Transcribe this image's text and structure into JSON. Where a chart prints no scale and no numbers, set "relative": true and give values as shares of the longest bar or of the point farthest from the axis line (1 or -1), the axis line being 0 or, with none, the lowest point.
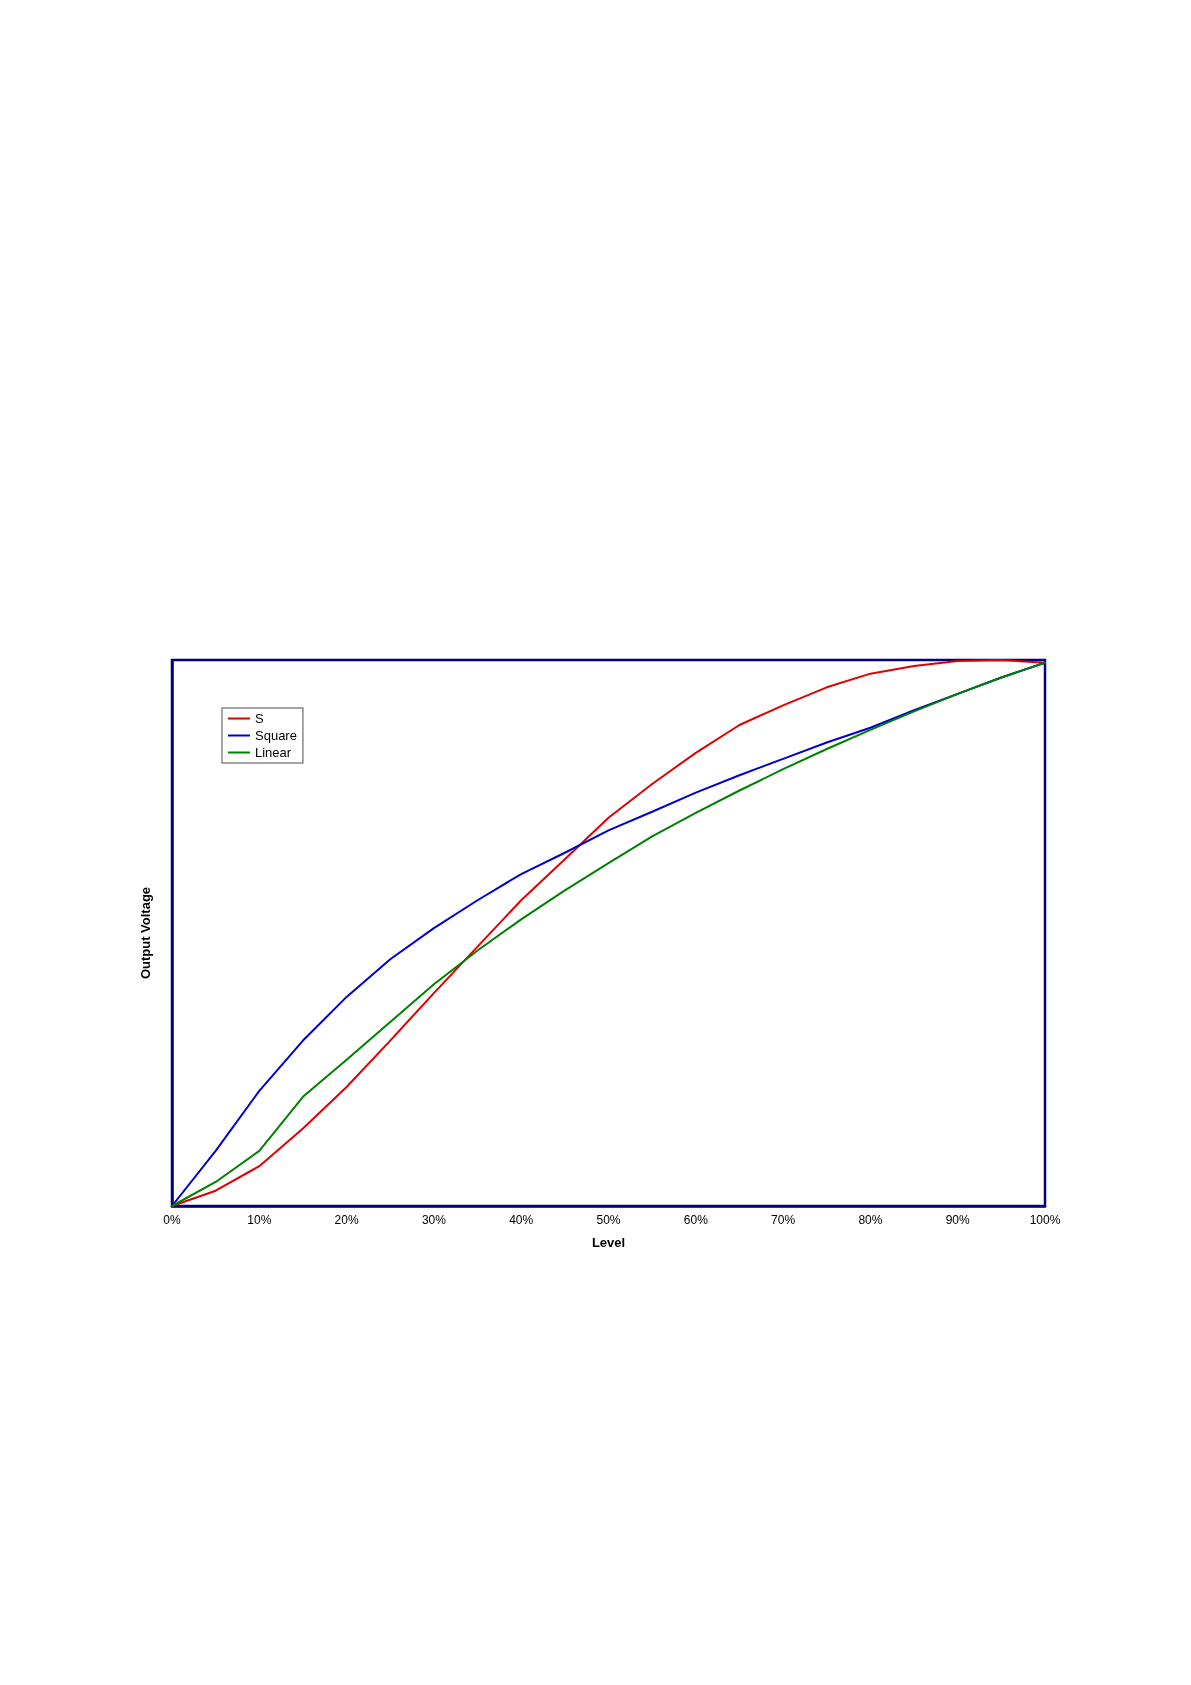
{
  "chart_data": {
    "type": "line",
    "relative": true,
    "xlabel": "Level",
    "ylabel": "Output Voltage",
    "x": [
      0,
      5,
      10,
      15,
      20,
      25,
      30,
      35,
      40,
      45,
      50,
      55,
      60,
      65,
      70,
      75,
      80,
      85,
      90,
      95,
      100
    ],
    "xlim": [
      0,
      100
    ],
    "xticks": [
      {
        "value": 0,
        "label": "0%"
      },
      {
        "value": 10,
        "label": "10%"
      },
      {
        "value": 20,
        "label": "20%"
      },
      {
        "value": 30,
        "label": "30%"
      },
      {
        "value": 40,
        "label": "40%"
      },
      {
        "value": 50,
        "label": "50%"
      },
      {
        "value": 60,
        "label": "60%"
      },
      {
        "value": 70,
        "label": "70%"
      },
      {
        "value": 80,
        "label": "80%"
      },
      {
        "value": 90,
        "label": "90%"
      },
      {
        "value": 100,
        "label": "100%"
      }
    ],
    "series": [
      {
        "name": "S",
        "color": "#e00000",
        "values": [
          0,
          0.028,
          0.073,
          0.142,
          0.218,
          0.303,
          0.39,
          0.475,
          0.56,
          0.635,
          0.711,
          0.773,
          0.83,
          0.881,
          0.917,
          0.95,
          0.975,
          0.989,
          0.998,
          1,
          0.995
        ]
      },
      {
        "name": "Square",
        "color": "#0000cc",
        "values": [
          0,
          0.101,
          0.211,
          0.303,
          0.383,
          0.452,
          0.509,
          0.56,
          0.608,
          0.647,
          0.688,
          0.722,
          0.757,
          0.789,
          0.819,
          0.849,
          0.876,
          0.908,
          0.938,
          0.968,
          0.995
        ]
      },
      {
        "name": "Linear",
        "color": "#008000",
        "values": [
          0,
          0.044,
          0.101,
          0.2,
          0.268,
          0.337,
          0.406,
          0.468,
          0.525,
          0.578,
          0.628,
          0.677,
          0.72,
          0.761,
          0.8,
          0.837,
          0.872,
          0.906,
          0.938,
          0.968,
          0.995
        ]
      }
    ],
    "legend": "top left",
    "grid": false,
    "marker": "none",
    "line_style": "solid"
  }
}
